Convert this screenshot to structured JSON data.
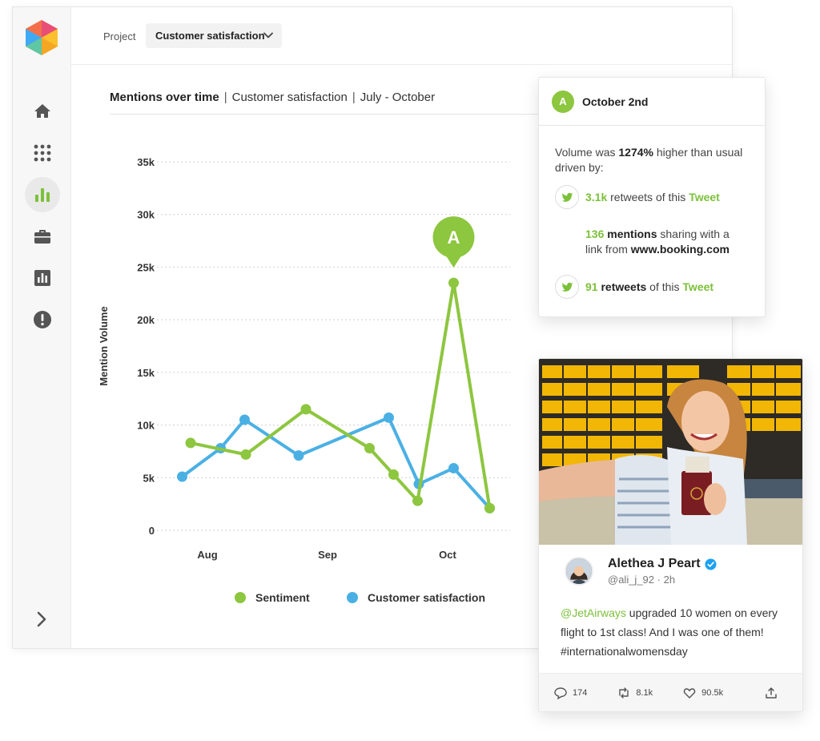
{
  "topbar": {
    "project_label": "Project",
    "project_value": "Customer satisfaction"
  },
  "sidebar": {
    "items": [
      {
        "icon": "home-icon"
      },
      {
        "icon": "apps-grid-icon"
      },
      {
        "icon": "bar-chart-icon",
        "active": true
      },
      {
        "icon": "briefcase-icon"
      },
      {
        "icon": "report-icon"
      },
      {
        "icon": "alert-icon"
      }
    ],
    "expand_icon": "chevron-right-icon"
  },
  "chart_header": {
    "title": "Mentions over time",
    "project": "Customer satisfaction",
    "range": "July - October"
  },
  "chart_data": {
    "type": "line",
    "ylabel": "Mention Volume",
    "xlabel": "",
    "ylim": [
      0,
      35000
    ],
    "y_ticks": [
      "0",
      "5k",
      "10k",
      "15k",
      "20k",
      "25k",
      "30k",
      "35k"
    ],
    "x_ticks": [
      "Aug",
      "Sep",
      "Oct"
    ],
    "grid": true,
    "legend": "bottom",
    "series": [
      {
        "name": "Sentiment",
        "color": "#8dc63f",
        "points": [
          [
            -0.14,
            8300
          ],
          [
            0.32,
            7200
          ],
          [
            0.82,
            11500
          ],
          [
            1.35,
            7800
          ],
          [
            1.55,
            5300
          ],
          [
            1.75,
            2800
          ],
          [
            2.05,
            23500
          ],
          [
            2.35,
            2100
          ]
        ]
      },
      {
        "name": "Customer satisfaction",
        "color": "#4ab0e4",
        "points": [
          [
            -0.21,
            5100
          ],
          [
            0.11,
            7800
          ],
          [
            0.31,
            10500
          ],
          [
            0.76,
            7100
          ],
          [
            1.51,
            10700
          ],
          [
            1.76,
            4400
          ],
          [
            2.05,
            5900
          ],
          [
            2.35,
            2100
          ]
        ]
      }
    ],
    "annotation": {
      "label": "A",
      "x": 2.05,
      "y": 23500
    }
  },
  "callout": {
    "badge": "A",
    "date": "October 2nd",
    "intro_a": "Volume was ",
    "intro_pct": "1274%",
    "intro_b": " higher than usual driven by:",
    "row1_num": "3.1k",
    "row1_text": " retweets of this ",
    "row1_link": "Tweet",
    "row2_num": "136",
    "row2_bold": " mentions",
    "row2_text": " sharing with a link from ",
    "row2_domain": "www.booking.com",
    "row3_num": "91",
    "row3_bold": " retweets",
    "row3_text": " of this ",
    "row3_link": "Tweet"
  },
  "tweet": {
    "name": "Alethea J Peart",
    "handle": "@ali_j_92",
    "dot": "·",
    "time": "2h",
    "mention": "@JetAirways",
    "text": " upgraded 10 women on every flight to 1st class! And I was one of them! #internationalwomensday",
    "replies": "174",
    "retweets": "8.1k",
    "likes": "90.5k"
  },
  "colors": {
    "accent_green": "#8dc63f",
    "accent_blue": "#4ab0e4",
    "twitter": "#7cc03a"
  }
}
